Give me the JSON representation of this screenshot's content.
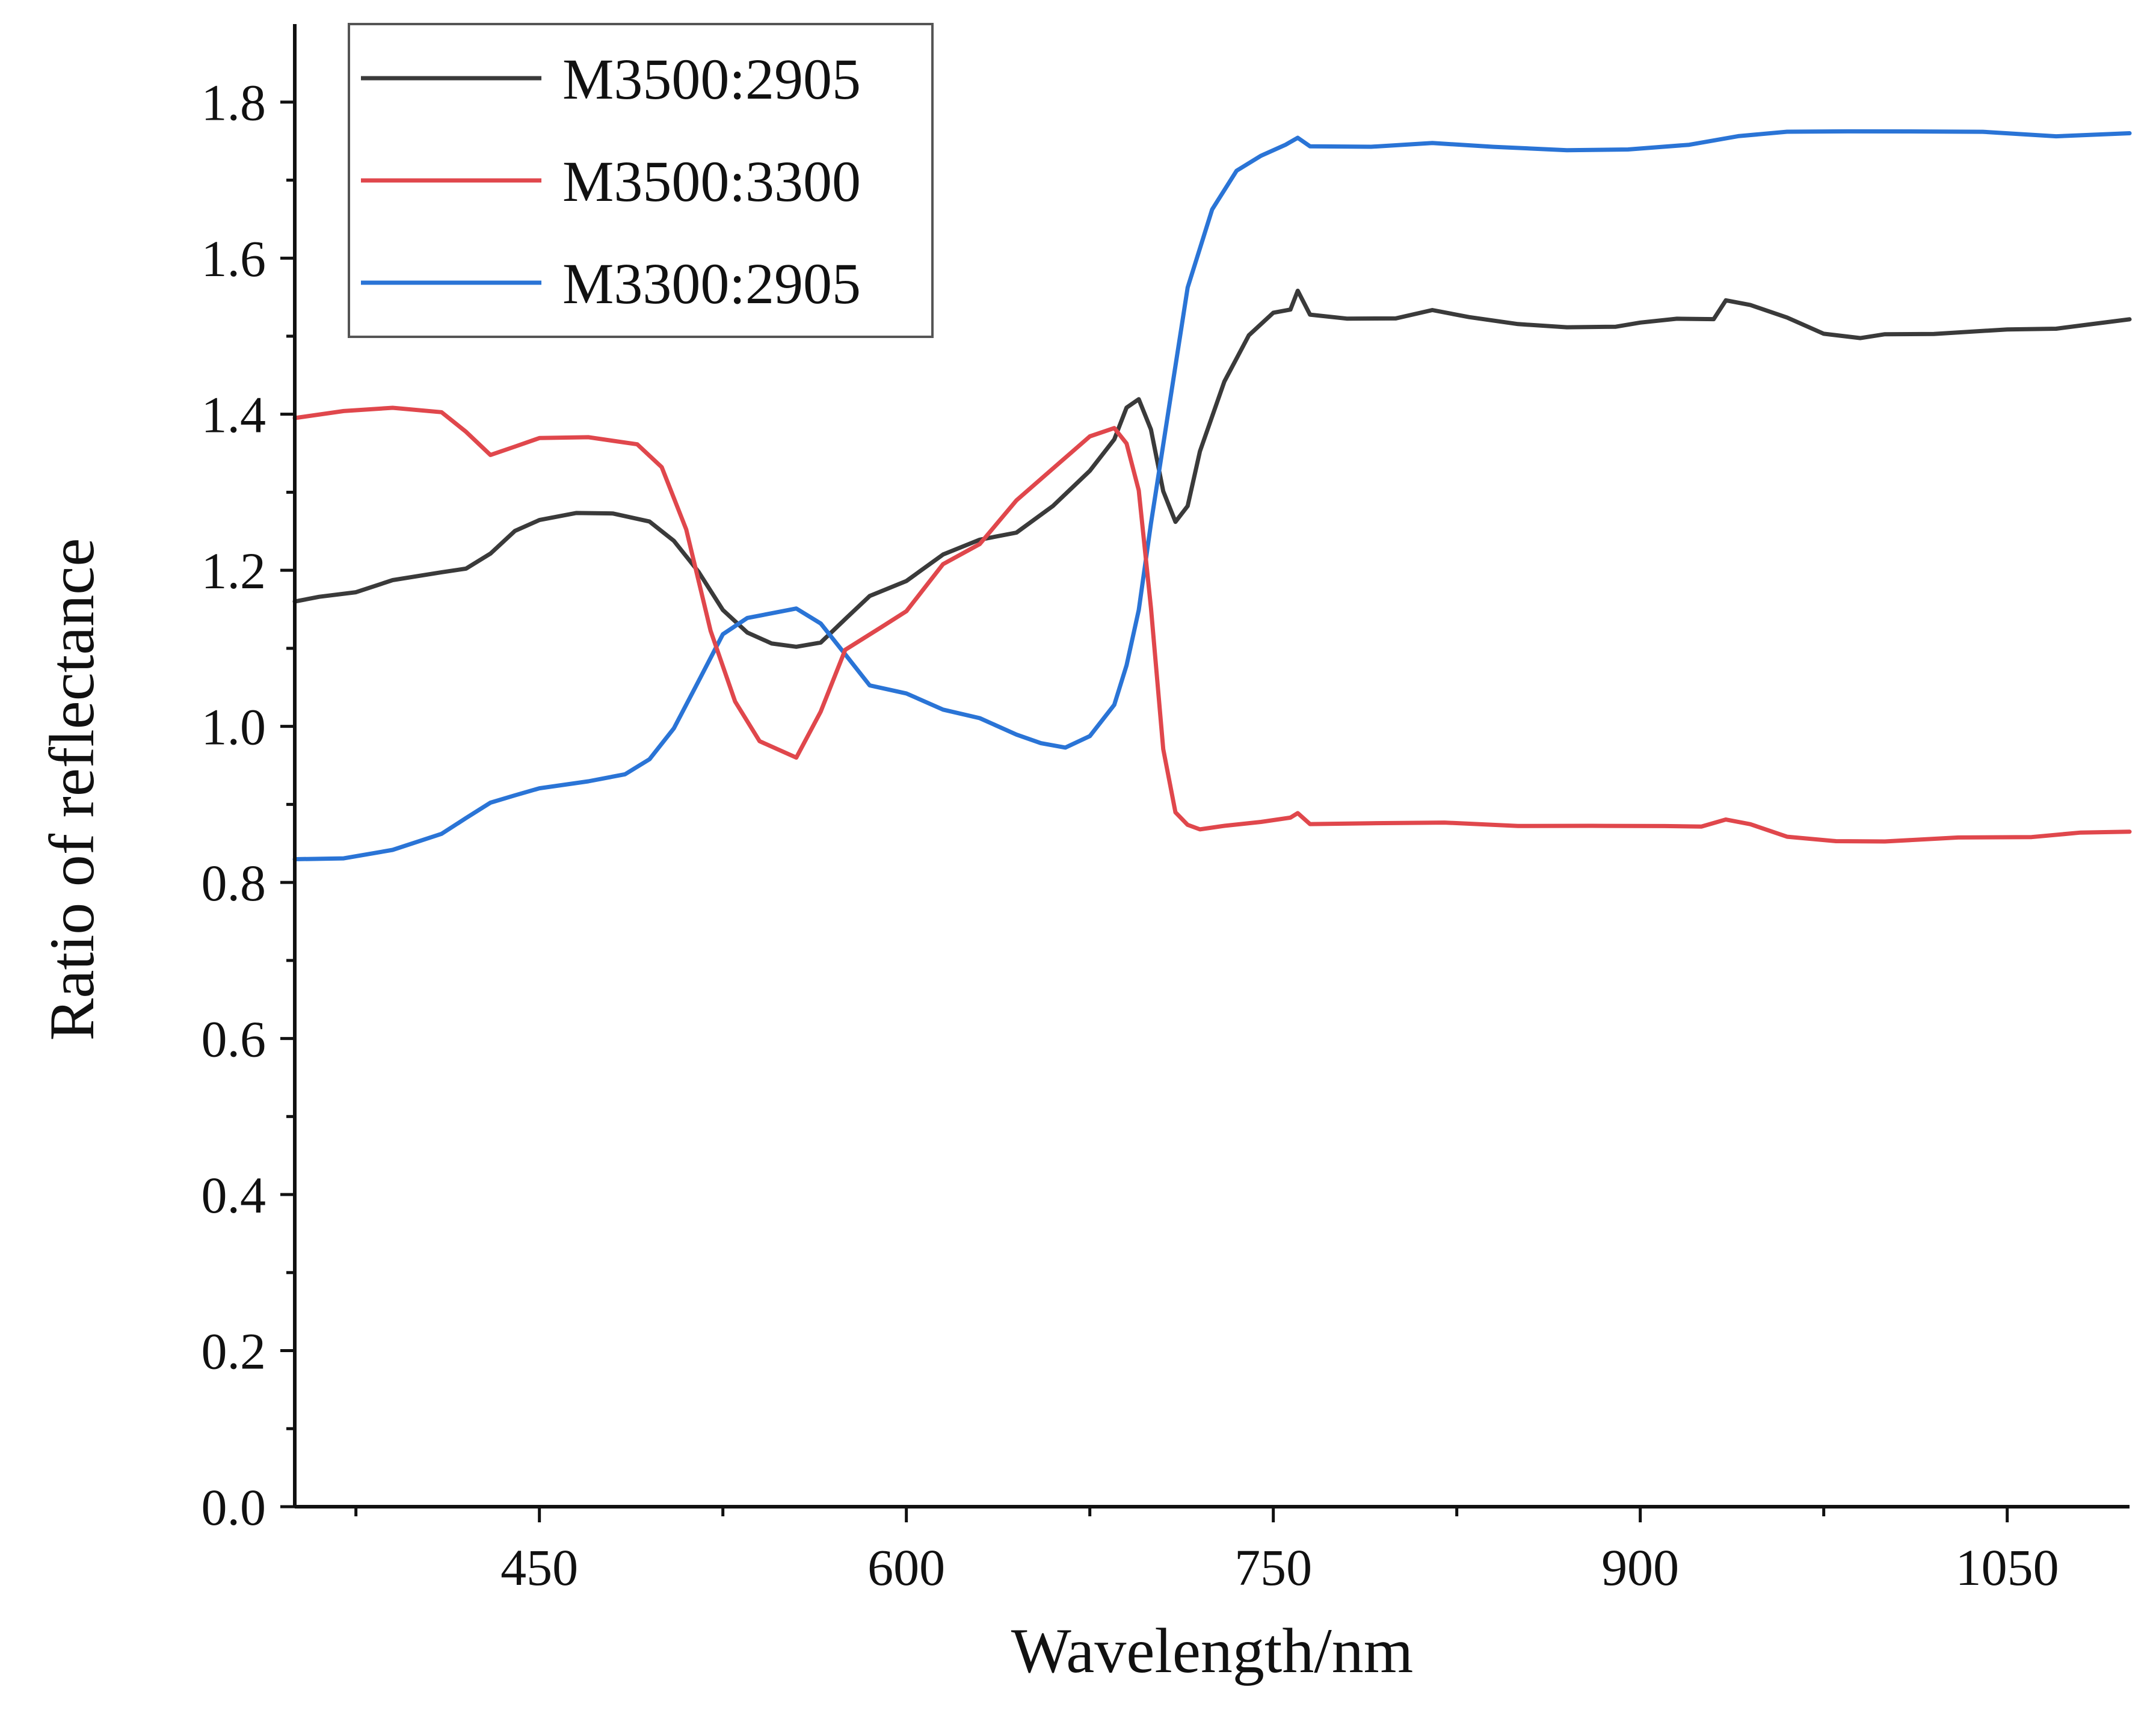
{
  "chart_data": {
    "type": "line",
    "title": "",
    "xlabel": "Wavelength/nm",
    "ylabel": "Ratio of reflectance",
    "xlim": [
      350,
      1100
    ],
    "ylim": [
      0.0,
      1.9
    ],
    "x_ticks": [
      450,
      600,
      750,
      900,
      1050
    ],
    "x_tick_labels": [
      "450",
      "600",
      "750",
      "900",
      "1050"
    ],
    "x_minor_ticks": [
      375,
      525,
      675,
      825,
      975
    ],
    "y_ticks": [
      0.0,
      0.2,
      0.4,
      0.6,
      0.8,
      1.0,
      1.2,
      1.4,
      1.6,
      1.8
    ],
    "y_tick_labels": [
      "0.0",
      "0.2",
      "0.4",
      "0.6",
      "0.8",
      "1.0",
      "1.2",
      "1.4",
      "1.6",
      "1.8"
    ],
    "y_minor_ticks": [
      0.1,
      0.3,
      0.5,
      0.7,
      0.9,
      1.1,
      1.3,
      1.5,
      1.7
    ],
    "grid": false,
    "legend_position": "top-left",
    "series": [
      {
        "name": "M3500:2905",
        "color": "#3a3a3a",
        "x": [
          350,
          360,
          375,
          390,
          410,
          420,
          430,
          440,
          450,
          465,
          480,
          495,
          505,
          515,
          525,
          535,
          545,
          555,
          565,
          575,
          585,
          600,
          615,
          630,
          645,
          660,
          675,
          685,
          690,
          695,
          700,
          705,
          710,
          715,
          720,
          730,
          740,
          750,
          757,
          760,
          765,
          780,
          800,
          815,
          830,
          850,
          870,
          890,
          900,
          915,
          930,
          935,
          945,
          960,
          975,
          990,
          1000,
          1020,
          1050,
          1070,
          1085,
          1100
        ],
        "y": [
          1.16,
          1.165,
          1.17,
          1.185,
          1.195,
          1.2,
          1.22,
          1.25,
          1.265,
          1.275,
          1.275,
          1.265,
          1.24,
          1.2,
          1.15,
          1.12,
          1.105,
          1.1,
          1.105,
          1.135,
          1.165,
          1.185,
          1.22,
          1.24,
          1.25,
          1.285,
          1.33,
          1.37,
          1.41,
          1.42,
          1.38,
          1.3,
          1.26,
          1.28,
          1.35,
          1.44,
          1.5,
          1.53,
          1.535,
          1.56,
          1.53,
          1.525,
          1.525,
          1.535,
          1.525,
          1.515,
          1.51,
          1.51,
          1.515,
          1.52,
          1.52,
          1.545,
          1.54,
          1.525,
          1.505,
          1.5,
          1.505,
          1.505,
          1.51,
          1.51,
          1.515,
          1.52
        ]
      },
      {
        "name": "M3500:3300",
        "color": "#e0474c",
        "x": [
          350,
          370,
          390,
          410,
          420,
          430,
          440,
          450,
          470,
          490,
          500,
          510,
          520,
          530,
          540,
          555,
          565,
          575,
          590,
          600,
          615,
          630,
          645,
          660,
          675,
          685,
          690,
          695,
          700,
          705,
          710,
          715,
          720,
          730,
          745,
          757,
          760,
          765,
          790,
          820,
          850,
          880,
          910,
          925,
          935,
          945,
          960,
          980,
          1000,
          1030,
          1060,
          1080,
          1100
        ],
        "y": [
          1.395,
          1.405,
          1.41,
          1.405,
          1.38,
          1.35,
          1.36,
          1.37,
          1.37,
          1.36,
          1.33,
          1.25,
          1.12,
          1.03,
          0.98,
          0.96,
          1.02,
          1.1,
          1.13,
          1.15,
          1.21,
          1.235,
          1.29,
          1.33,
          1.37,
          1.38,
          1.36,
          1.3,
          1.15,
          0.97,
          0.89,
          0.875,
          0.87,
          0.875,
          0.88,
          0.885,
          0.89,
          0.875,
          0.875,
          0.875,
          0.87,
          0.87,
          0.87,
          0.87,
          0.88,
          0.875,
          0.86,
          0.855,
          0.855,
          0.86,
          0.86,
          0.865,
          0.865
        ]
      },
      {
        "name": "M3300:2905",
        "color": "#2a74d6",
        "x": [
          350,
          370,
          390,
          410,
          420,
          430,
          440,
          450,
          470,
          485,
          495,
          505,
          515,
          525,
          535,
          545,
          555,
          565,
          575,
          585,
          600,
          615,
          630,
          645,
          655,
          665,
          675,
          685,
          690,
          695,
          700,
          705,
          710,
          715,
          725,
          735,
          745,
          755,
          760,
          765,
          790,
          815,
          840,
          870,
          895,
          920,
          940,
          960,
          985,
          1010,
          1040,
          1070,
          1100
        ],
        "y": [
          0.83,
          0.83,
          0.84,
          0.86,
          0.88,
          0.9,
          0.91,
          0.92,
          0.93,
          0.94,
          0.96,
          1.0,
          1.06,
          1.12,
          1.14,
          1.145,
          1.15,
          1.13,
          1.09,
          1.05,
          1.04,
          1.02,
          1.01,
          0.99,
          0.98,
          0.975,
          0.99,
          1.03,
          1.08,
          1.15,
          1.26,
          1.36,
          1.46,
          1.56,
          1.66,
          1.71,
          1.73,
          1.745,
          1.755,
          1.745,
          1.745,
          1.75,
          1.745,
          1.74,
          1.74,
          1.745,
          1.755,
          1.76,
          1.76,
          1.76,
          1.76,
          1.755,
          1.76
        ]
      }
    ]
  }
}
